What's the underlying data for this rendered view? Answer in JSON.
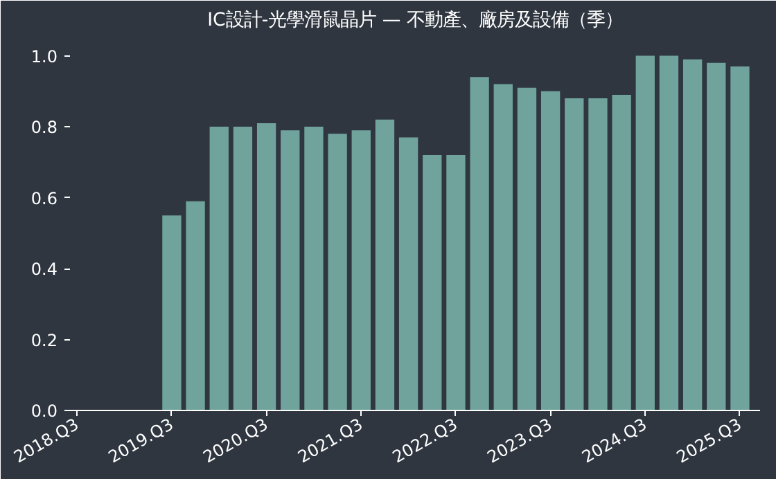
{
  "chart_data": {
    "type": "bar",
    "title": "IC設計-光學滑鼠晶片 — 不動產、廠房及設備（季）",
    "categories": [
      "2018.Q3",
      null,
      null,
      null,
      "2019.Q3",
      null,
      null,
      null,
      "2020.Q3",
      null,
      null,
      null,
      "2021.Q3",
      null,
      null,
      null,
      "2022.Q3",
      null,
      null,
      null,
      "2023.Q3",
      null,
      null,
      null,
      "2024.Q3",
      null,
      null,
      null,
      "2025.Q3"
    ],
    "values": [
      null,
      null,
      null,
      null,
      0.55,
      0.59,
      0.8,
      0.8,
      0.81,
      0.79,
      0.8,
      0.78,
      0.79,
      0.82,
      0.77,
      0.72,
      0.72,
      0.94,
      0.92,
      0.91,
      0.9,
      0.88,
      0.88,
      0.89,
      1.0,
      1.0,
      0.99,
      0.98,
      0.97
    ],
    "color": "#6fa39b",
    "ylim": [
      0,
      1.05
    ],
    "yticks": [
      {
        "value": 0,
        "label": "0.0"
      },
      0.2,
      0.4,
      0.6,
      0.8,
      {
        "value": 1,
        "label": "1.0"
      }
    ],
    "grid": false
  }
}
